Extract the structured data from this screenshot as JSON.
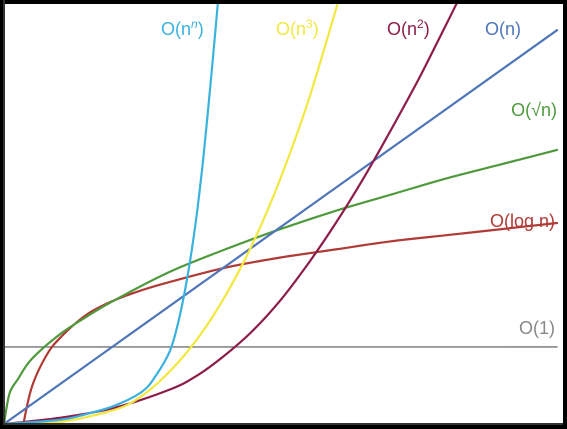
{
  "chart_data": {
    "type": "line",
    "title": "",
    "xlabel": "",
    "ylabel": "",
    "xlim": [
      0,
      10
    ],
    "ylim": [
      0,
      10
    ],
    "grid": false,
    "background": "#ffffff",
    "axis_color": "#333333",
    "series": [
      {
        "name": "O(1)",
        "label_parts": [
          {
            "t": "O(1)"
          }
        ],
        "color": "#888888",
        "x": [
          0,
          10
        ],
        "y": [
          1.9,
          1.9
        ]
      },
      {
        "name": "O(log n)",
        "label_parts": [
          {
            "t": "O(log n)"
          }
        ],
        "color": "#b03a35",
        "x": [
          0.35,
          0.5,
          0.75,
          1,
          1.5,
          2,
          2.5,
          3,
          4,
          5,
          6,
          7,
          8,
          9,
          10
        ],
        "y": [
          0,
          0.9,
          1.65,
          2.1,
          2.7,
          3.05,
          3.3,
          3.5,
          3.85,
          4.1,
          4.3,
          4.5,
          4.65,
          4.8,
          4.95
        ]
      },
      {
        "name": "O(√n)",
        "label_parts": [
          {
            "t": "O(√n)"
          }
        ],
        "color": "#4e9a3c",
        "x": [
          0,
          0.1,
          0.25,
          0.5,
          1,
          1.5,
          2,
          3,
          4,
          5,
          6,
          7,
          8,
          9,
          10
        ],
        "y": [
          0,
          0.75,
          1.1,
          1.6,
          2.2,
          2.65,
          3.05,
          3.75,
          4.3,
          4.8,
          5.25,
          5.65,
          6.05,
          6.4,
          6.75
        ]
      },
      {
        "name": "O(n)",
        "label_parts": [
          {
            "t": "O(n)"
          }
        ],
        "color": "#4f76b8",
        "x": [
          0,
          10
        ],
        "y": [
          0,
          9.7
        ]
      },
      {
        "name": "O(n^2)",
        "label_parts": [
          {
            "t": "O(n"
          },
          {
            "t": "2",
            "sup": true
          },
          {
            "t": ")"
          }
        ],
        "color": "#8c1c4a",
        "x": [
          0,
          1,
          2,
          3,
          3.5,
          4,
          4.5,
          5,
          5.5,
          6,
          6.5,
          7,
          7.5,
          8,
          8.2
        ],
        "y": [
          0,
          0.15,
          0.4,
          0.85,
          1.2,
          1.7,
          2.3,
          3.05,
          3.95,
          4.95,
          6.05,
          7.25,
          8.5,
          9.85,
          10.4
        ]
      },
      {
        "name": "O(n^3)",
        "label_parts": [
          {
            "t": "O(n"
          },
          {
            "t": "3",
            "sup": true
          },
          {
            "t": ")"
          }
        ],
        "color": "#f2e840",
        "x": [
          0,
          1,
          2,
          2.5,
          3,
          3.5,
          4,
          4.5,
          5,
          5.5,
          6,
          6.15
        ],
        "y": [
          0,
          0.05,
          0.35,
          0.7,
          1.3,
          2.1,
          3.15,
          4.45,
          6.05,
          7.95,
          10.2,
          10.9
        ]
      },
      {
        "name": "O(n^n)",
        "label_parts": [
          {
            "t": "O(n"
          },
          {
            "t": "n",
            "sup": true,
            "italic": true
          },
          {
            "t": ")"
          }
        ],
        "color": "#3bb1de",
        "x": [
          0,
          1,
          1.5,
          2,
          2.5,
          2.75,
          3,
          3.15,
          3.3,
          3.45,
          3.6,
          3.75,
          3.85,
          3.9
        ],
        "y": [
          0,
          0.1,
          0.25,
          0.45,
          0.8,
          1.2,
          1.8,
          2.5,
          3.5,
          4.8,
          6.5,
          8.6,
          10.1,
          10.9
        ]
      }
    ]
  }
}
